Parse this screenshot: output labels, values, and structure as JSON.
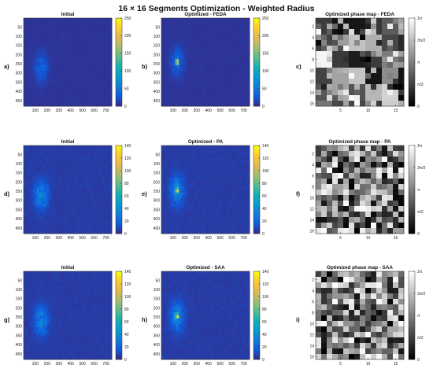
{
  "figure": {
    "title": "16 × 16 Segments Optimization - Weighted Radius"
  },
  "chart_data": [
    {
      "type": "heatmap",
      "panel_label": "a)",
      "title": "Initial",
      "content": "speckle",
      "peak_intensity": 75,
      "spot": [
        150,
        270
      ],
      "colormap": "parula",
      "x_ticks": [
        100,
        200,
        300,
        400,
        500,
        600,
        700
      ],
      "y_ticks": [
        50,
        100,
        150,
        200,
        250,
        300,
        350,
        400,
        450
      ],
      "colorbar": {
        "ticks": [
          0,
          50,
          100,
          150,
          200,
          250
        ],
        "range": [
          0,
          250
        ]
      }
    },
    {
      "type": "heatmap",
      "panel_label": "b)",
      "title": "Optimized - FEDA",
      "content": "focus",
      "peak_intensity": 250,
      "spot": [
        135,
        240
      ],
      "colormap": "parula",
      "x_ticks": [
        100,
        200,
        300,
        400,
        500,
        600,
        700
      ],
      "y_ticks": [
        50,
        100,
        150,
        200,
        250,
        300,
        350,
        400,
        450
      ],
      "colorbar": {
        "ticks": [
          0,
          50,
          100,
          150,
          200,
          250
        ],
        "range": [
          0,
          250
        ]
      }
    },
    {
      "type": "heatmap",
      "panel_label": "c)",
      "title": "Optimized phase map - FEDA",
      "content": "phase_blocky",
      "seed": 11,
      "colormap": "gray",
      "x_ticks": [
        5,
        10,
        15
      ],
      "y_ticks": [
        2,
        4,
        6,
        8,
        10,
        12,
        14,
        16
      ],
      "colorbar": {
        "ticks": [
          "0",
          "π/2",
          "π",
          "3π/2",
          "2π"
        ],
        "range": [
          0,
          6.2832
        ]
      }
    },
    {
      "type": "heatmap",
      "panel_label": "d)",
      "title": "Initial",
      "content": "speckle",
      "peak_intensity": 75,
      "spot": [
        150,
        270
      ],
      "colormap": "parula",
      "x_ticks": [
        100,
        200,
        300,
        400,
        500,
        600,
        700
      ],
      "y_ticks": [
        50,
        100,
        150,
        200,
        250,
        300,
        350,
        400,
        450
      ],
      "colorbar": {
        "ticks": [
          0,
          20,
          40,
          60,
          80,
          100,
          120,
          140
        ],
        "range": [
          0,
          140
        ]
      }
    },
    {
      "type": "heatmap",
      "panel_label": "e)",
      "title": "Optimized - PA",
      "content": "focus",
      "peak_intensity": 130,
      "spot": [
        135,
        245
      ],
      "colormap": "parula",
      "x_ticks": [
        100,
        200,
        300,
        400,
        500,
        600,
        700
      ],
      "y_ticks": [
        50,
        100,
        150,
        200,
        250,
        300,
        350,
        400,
        450
      ],
      "colorbar": {
        "ticks": [
          0,
          20,
          40,
          60,
          80,
          100,
          120,
          140
        ],
        "range": [
          0,
          140
        ]
      }
    },
    {
      "type": "heatmap",
      "panel_label": "f)",
      "title": "Optimized phase map - PA",
      "content": "phase_random",
      "seed": 23,
      "colormap": "gray",
      "x_ticks": [
        5,
        10,
        15
      ],
      "y_ticks": [
        2,
        4,
        6,
        8,
        10,
        12,
        14,
        16
      ],
      "colorbar": {
        "ticks": [
          "0",
          "π/2",
          "π",
          "3π/2",
          "2π"
        ],
        "range": [
          0,
          6.2832
        ]
      }
    },
    {
      "type": "heatmap",
      "panel_label": "g)",
      "title": "Initial",
      "content": "speckle",
      "peak_intensity": 75,
      "spot": [
        150,
        270
      ],
      "colormap": "parula",
      "x_ticks": [
        100,
        200,
        300,
        400,
        500,
        600,
        700
      ],
      "y_ticks": [
        50,
        100,
        150,
        200,
        250,
        300,
        350,
        400,
        450
      ],
      "colorbar": {
        "ticks": [
          0,
          20,
          40,
          60,
          80,
          100,
          120,
          140
        ],
        "range": [
          0,
          140
        ]
      }
    },
    {
      "type": "heatmap",
      "panel_label": "h)",
      "title": "Optimized - SAA",
      "content": "focus",
      "peak_intensity": 135,
      "spot": [
        135,
        245
      ],
      "colormap": "parula",
      "x_ticks": [
        100,
        200,
        300,
        400,
        500,
        600,
        700
      ],
      "y_ticks": [
        50,
        100,
        150,
        200,
        250,
        300,
        350,
        400,
        450
      ],
      "colorbar": {
        "ticks": [
          0,
          20,
          40,
          60,
          80,
          100,
          120,
          140
        ],
        "range": [
          0,
          140
        ]
      }
    },
    {
      "type": "heatmap",
      "panel_label": "i)",
      "title": "Optimized phase map - SAA",
      "content": "phase_random",
      "seed": 47,
      "colormap": "gray",
      "x_ticks": [
        5,
        10,
        15
      ],
      "y_ticks": [
        2,
        4,
        6,
        8,
        10,
        12,
        14,
        16
      ],
      "colorbar": {
        "ticks": [
          "0",
          "π/2",
          "π",
          "3π/2",
          "2π"
        ],
        "range": [
          0,
          6.2832
        ]
      }
    }
  ]
}
